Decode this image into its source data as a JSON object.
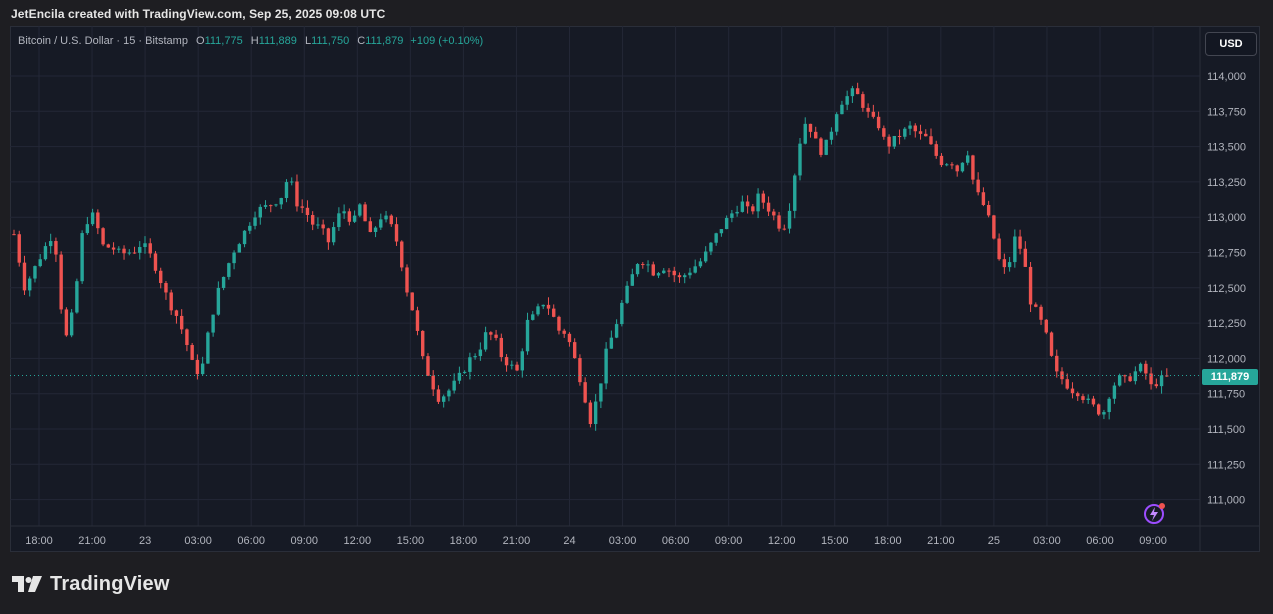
{
  "header": {
    "attribution": "JetEncila created with TradingView.com, Sep 25, 2025 09:08 UTC"
  },
  "legend": {
    "symbol": "Bitcoin / U.S. Dollar · 15 · Bitstamp",
    "open_key": "O",
    "open": "111,775",
    "high_key": "H",
    "high": "111,889",
    "low_key": "L",
    "low": "111,750",
    "close_key": "C",
    "close": "111,879",
    "change": "+109 (+0.10%)"
  },
  "currency_button": "USD",
  "current_price_label": "111,879",
  "brand": "TradingView",
  "colors": {
    "background": "#161a25",
    "grid": "#232736",
    "up": "#26a69a",
    "down": "#ef5350",
    "text": "#b2b5be"
  },
  "chart_data": {
    "type": "candlestick",
    "title": "",
    "ylim": [
      110850,
      114100
    ],
    "y_ticks": [
      "114,000",
      "113,750",
      "113,500",
      "113,250",
      "113,000",
      "112,750",
      "112,500",
      "112,250",
      "112,000",
      "111,750",
      "111,500",
      "111,250",
      "111,000"
    ],
    "x_ticks": [
      "18:00",
      "21:00",
      "23",
      "03:00",
      "06:00",
      "09:00",
      "12:00",
      "15:00",
      "18:00",
      "21:00",
      "24",
      "03:00",
      "06:00",
      "09:00",
      "12:00",
      "15:00",
      "18:00",
      "21:00",
      "25",
      "03:00",
      "06:00",
      "09:00"
    ],
    "current_price": 111879,
    "grid": true,
    "close_path": [
      [
        0,
        112880
      ],
      [
        8,
        112500
      ],
      [
        16,
        112650
      ],
      [
        24,
        112800
      ],
      [
        30,
        112900
      ],
      [
        36,
        112300
      ],
      [
        40,
        112120
      ],
      [
        46,
        112450
      ],
      [
        52,
        112950
      ],
      [
        60,
        113020
      ],
      [
        66,
        112800
      ],
      [
        74,
        112780
      ],
      [
        80,
        112740
      ],
      [
        90,
        112760
      ],
      [
        96,
        112820
      ],
      [
        104,
        112700
      ],
      [
        110,
        112550
      ],
      [
        116,
        112400
      ],
      [
        122,
        112300
      ],
      [
        128,
        112150
      ],
      [
        134,
        111950
      ],
      [
        140,
        111880
      ],
      [
        146,
        112200
      ],
      [
        152,
        112450
      ],
      [
        158,
        112600
      ],
      [
        164,
        112750
      ],
      [
        170,
        112850
      ],
      [
        176,
        112950
      ],
      [
        182,
        113050
      ],
      [
        188,
        113070
      ],
      [
        194,
        113100
      ],
      [
        200,
        113140
      ],
      [
        206,
        113300
      ],
      [
        212,
        113100
      ],
      [
        218,
        113050
      ],
      [
        224,
        112950
      ],
      [
        230,
        112920
      ],
      [
        236,
        112820
      ],
      [
        242,
        113000
      ],
      [
        248,
        113050
      ],
      [
        254,
        112950
      ],
      [
        260,
        113100
      ],
      [
        266,
        112850
      ],
      [
        272,
        112950
      ],
      [
        276,
        113020
      ],
      [
        282,
        112950
      ],
      [
        288,
        112800
      ],
      [
        294,
        112500
      ],
      [
        300,
        112300
      ],
      [
        306,
        112000
      ],
      [
        312,
        111850
      ],
      [
        318,
        111720
      ],
      [
        324,
        111750
      ],
      [
        330,
        111820
      ],
      [
        336,
        111900
      ],
      [
        342,
        112000
      ],
      [
        348,
        112050
      ],
      [
        354,
        112180
      ],
      [
        360,
        112150
      ],
      [
        366,
        112000
      ],
      [
        372,
        111950
      ],
      [
        378,
        111900
      ],
      [
        384,
        112250
      ],
      [
        390,
        112300
      ],
      [
        396,
        112400
      ],
      [
        402,
        112350
      ],
      [
        408,
        112200
      ],
      [
        414,
        112180
      ],
      [
        420,
        112000
      ],
      [
        426,
        111800
      ],
      [
        432,
        111560
      ],
      [
        438,
        111750
      ],
      [
        444,
        112050
      ],
      [
        450,
        112200
      ],
      [
        456,
        112400
      ],
      [
        462,
        112550
      ],
      [
        468,
        112700
      ],
      [
        474,
        112680
      ],
      [
        480,
        112600
      ],
      [
        486,
        112650
      ],
      [
        492,
        112620
      ],
      [
        498,
        112560
      ],
      [
        504,
        112600
      ],
      [
        510,
        112650
      ],
      [
        516,
        112700
      ],
      [
        522,
        112800
      ],
      [
        528,
        112900
      ],
      [
        534,
        112980
      ],
      [
        540,
        113050
      ],
      [
        546,
        113100
      ],
      [
        552,
        113020
      ],
      [
        558,
        113150
      ],
      [
        564,
        113080
      ],
      [
        570,
        113000
      ],
      [
        576,
        112900
      ],
      [
        582,
        113100
      ],
      [
        588,
        113500
      ],
      [
        594,
        113700
      ],
      [
        600,
        113550
      ],
      [
        606,
        113450
      ],
      [
        612,
        113600
      ],
      [
        618,
        113800
      ],
      [
        624,
        113850
      ],
      [
        630,
        113900
      ],
      [
        636,
        113800
      ],
      [
        642,
        113700
      ],
      [
        648,
        113650
      ],
      [
        654,
        113500
      ],
      [
        660,
        113550
      ],
      [
        666,
        113600
      ],
      [
        672,
        113640
      ],
      [
        678,
        113580
      ],
      [
        684,
        113560
      ],
      [
        690,
        113450
      ],
      [
        696,
        113380
      ],
      [
        702,
        113400
      ],
      [
        708,
        113320
      ],
      [
        714,
        113500
      ],
      [
        720,
        113200
      ],
      [
        726,
        113100
      ],
      [
        732,
        112950
      ],
      [
        738,
        112700
      ],
      [
        744,
        112600
      ],
      [
        750,
        112850
      ],
      [
        756,
        112750
      ],
      [
        762,
        112400
      ],
      [
        768,
        112300
      ],
      [
        774,
        112150
      ],
      [
        780,
        111900
      ],
      [
        786,
        111850
      ],
      [
        792,
        111780
      ],
      [
        798,
        111760
      ],
      [
        804,
        111700
      ],
      [
        810,
        111650
      ],
      [
        816,
        111600
      ],
      [
        822,
        111780
      ],
      [
        828,
        111860
      ],
      [
        834,
        111840
      ],
      [
        840,
        111900
      ],
      [
        846,
        111950
      ],
      [
        852,
        111800
      ],
      [
        858,
        111840
      ],
      [
        864,
        111879
      ]
    ]
  }
}
